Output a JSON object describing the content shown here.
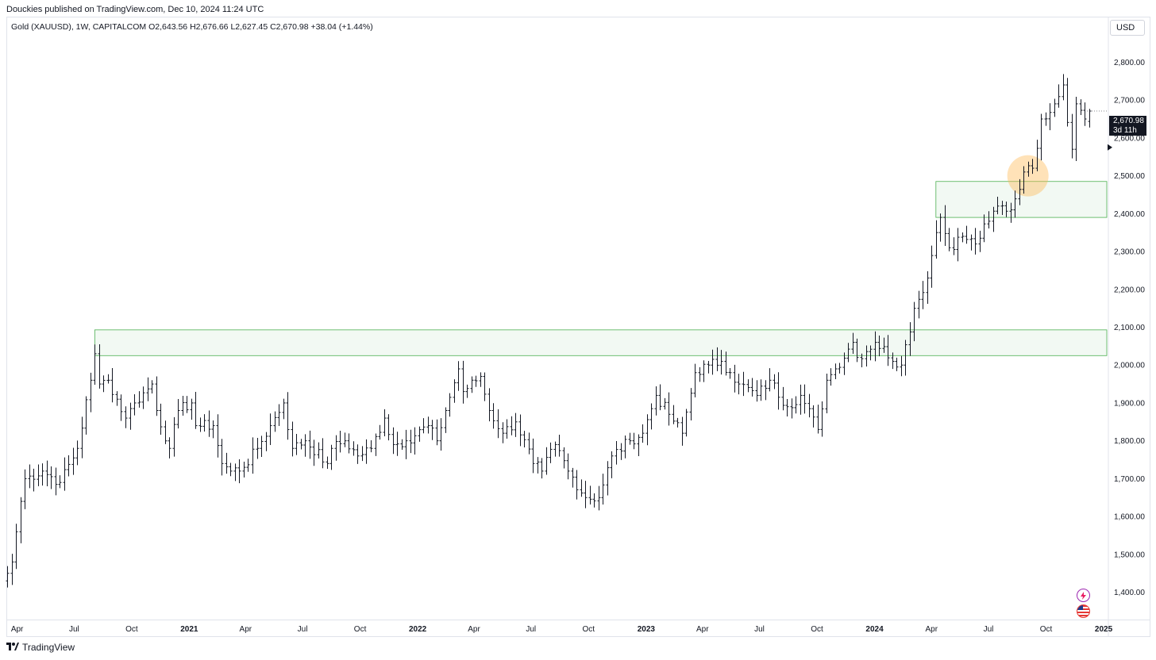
{
  "header": {
    "published": "Douckies published on TradingView.com, Dec 10, 2024 11:24 UTC"
  },
  "legend": {
    "symbol": "Gold (XAUUSD), 1W, CAPITALCOM",
    "open": "O2,643.56",
    "high": "H2,676.66",
    "low": "L2,627.45",
    "close": "C2,670.98",
    "change": "+38.04 (+1.44%)"
  },
  "currency_button": "USD",
  "last_price": {
    "price": "2,670.98",
    "countdown": "3d 11h"
  },
  "footer": {
    "brand": "TradingView"
  },
  "chart_data": {
    "type": "ohlc",
    "symbol": "XAUUSD",
    "interval": "1W",
    "ylim": [
      1330,
      2870
    ],
    "y_ticks": [
      1400,
      1500,
      1600,
      1700,
      1800,
      1900,
      2000,
      2100,
      2200,
      2300,
      2400,
      2500,
      2600,
      2700,
      2800
    ],
    "y_tick_labels": [
      "1,400.00",
      "1,500.00",
      "1,600.00",
      "1,700.00",
      "1,800.00",
      "1,900.00",
      "2,000.00",
      "2,100.00",
      "2,200.00",
      "2,300.00",
      "2,400.00",
      "2,500.00",
      "2,600.00",
      "2,700.00",
      "2,800.00"
    ],
    "x_start": "2020-03-16",
    "x_end": "2025-01-06",
    "x_ticks": [
      {
        "date": "2020-04-01",
        "label": "Apr",
        "bold": false
      },
      {
        "date": "2020-07-01",
        "label": "Jul",
        "bold": false
      },
      {
        "date": "2020-10-01",
        "label": "Oct",
        "bold": false
      },
      {
        "date": "2021-01-01",
        "label": "2021",
        "bold": true
      },
      {
        "date": "2021-04-01",
        "label": "Apr",
        "bold": false
      },
      {
        "date": "2021-07-01",
        "label": "Jul",
        "bold": false
      },
      {
        "date": "2021-10-01",
        "label": "Oct",
        "bold": false
      },
      {
        "date": "2022-01-01",
        "label": "2022",
        "bold": true
      },
      {
        "date": "2022-04-01",
        "label": "Apr",
        "bold": false
      },
      {
        "date": "2022-07-01",
        "label": "Jul",
        "bold": false
      },
      {
        "date": "2022-10-01",
        "label": "Oct",
        "bold": false
      },
      {
        "date": "2023-01-01",
        "label": "2023",
        "bold": true
      },
      {
        "date": "2023-04-01",
        "label": "Apr",
        "bold": false
      },
      {
        "date": "2023-07-01",
        "label": "Jul",
        "bold": false
      },
      {
        "date": "2023-10-01",
        "label": "Oct",
        "bold": false
      },
      {
        "date": "2024-01-01",
        "label": "2024",
        "bold": true
      },
      {
        "date": "2024-04-01",
        "label": "Apr",
        "bold": false
      },
      {
        "date": "2024-07-01",
        "label": "Jul",
        "bold": false
      },
      {
        "date": "2024-10-01",
        "label": "Oct",
        "bold": false
      },
      {
        "date": "2025-01-01",
        "label": "2025",
        "bold": true
      }
    ],
    "anchors": [
      [
        "2020-03-16",
        1450
      ],
      [
        "2020-03-23",
        1480
      ],
      [
        "2020-04-06",
        1640
      ],
      [
        "2020-04-13",
        1700
      ],
      [
        "2020-05-11",
        1720
      ],
      [
        "2020-06-08",
        1690
      ],
      [
        "2020-07-06",
        1780
      ],
      [
        "2020-07-27",
        1960
      ],
      [
        "2020-08-03",
        2030
      ],
      [
        "2020-08-10",
        1950
      ],
      [
        "2020-08-24",
        1960
      ],
      [
        "2020-09-21",
        1860
      ],
      [
        "2020-10-05",
        1900
      ],
      [
        "2020-11-02",
        1950
      ],
      [
        "2020-11-09",
        1880
      ],
      [
        "2020-11-30",
        1780
      ],
      [
        "2020-12-14",
        1880
      ],
      [
        "2021-01-04",
        1900
      ],
      [
        "2021-01-11",
        1840
      ],
      [
        "2021-02-08",
        1840
      ],
      [
        "2021-02-22",
        1740
      ],
      [
        "2021-03-08",
        1720
      ],
      [
        "2021-03-29",
        1730
      ],
      [
        "2021-04-19",
        1780
      ],
      [
        "2021-05-10",
        1840
      ],
      [
        "2021-05-31",
        1900
      ],
      [
        "2021-06-14",
        1780
      ],
      [
        "2021-07-05",
        1800
      ],
      [
        "2021-08-09",
        1740
      ],
      [
        "2021-08-16",
        1780
      ],
      [
        "2021-09-06",
        1800
      ],
      [
        "2021-09-27",
        1760
      ],
      [
        "2021-10-18",
        1780
      ],
      [
        "2021-11-08",
        1860
      ],
      [
        "2021-11-22",
        1790
      ],
      [
        "2021-12-13",
        1800
      ],
      [
        "2022-01-17",
        1840
      ],
      [
        "2022-01-31",
        1800
      ],
      [
        "2022-02-14",
        1880
      ],
      [
        "2022-03-07",
        1990
      ],
      [
        "2022-03-14",
        1930
      ],
      [
        "2022-04-11",
        1970
      ],
      [
        "2022-04-25",
        1880
      ],
      [
        "2022-05-16",
        1820
      ],
      [
        "2022-06-06",
        1850
      ],
      [
        "2022-07-04",
        1740
      ],
      [
        "2022-07-18",
        1720
      ],
      [
        "2022-08-08",
        1790
      ],
      [
        "2022-08-29",
        1720
      ],
      [
        "2022-09-26",
        1650
      ],
      [
        "2022-10-17",
        1650
      ],
      [
        "2022-11-07",
        1760
      ],
      [
        "2022-12-05",
        1800
      ],
      [
        "2022-12-26",
        1820
      ],
      [
        "2023-01-16",
        1920
      ],
      [
        "2023-02-06",
        1870
      ],
      [
        "2023-02-27",
        1820
      ],
      [
        "2023-03-20",
        1980
      ],
      [
        "2023-04-10",
        2000
      ],
      [
        "2023-05-01",
        2010
      ],
      [
        "2023-05-15",
        1980
      ],
      [
        "2023-05-29",
        1950
      ],
      [
        "2023-06-26",
        1920
      ],
      [
        "2023-07-17",
        1960
      ],
      [
        "2023-08-14",
        1890
      ],
      [
        "2023-09-04",
        1920
      ],
      [
        "2023-10-02",
        1830
      ],
      [
        "2023-10-16",
        1960
      ],
      [
        "2023-10-30",
        1990
      ],
      [
        "2023-11-27",
        2060
      ],
      [
        "2023-12-04",
        2020
      ],
      [
        "2024-01-01",
        2060
      ],
      [
        "2024-02-12",
        2000
      ],
      [
        "2024-03-04",
        2150
      ],
      [
        "2024-03-25",
        2230
      ],
      [
        "2024-04-08",
        2350
      ],
      [
        "2024-04-15",
        2390
      ],
      [
        "2024-04-29",
        2310
      ],
      [
        "2024-05-20",
        2340
      ],
      [
        "2024-06-10",
        2320
      ],
      [
        "2024-07-01",
        2380
      ],
      [
        "2024-07-15",
        2420
      ],
      [
        "2024-08-05",
        2410
      ],
      [
        "2024-08-26",
        2510
      ],
      [
        "2024-09-09",
        2520
      ],
      [
        "2024-09-23",
        2650
      ],
      [
        "2024-10-14",
        2690
      ],
      [
        "2024-10-28",
        2740
      ],
      [
        "2024-11-11",
        2570
      ],
      [
        "2024-11-18",
        2690
      ],
      [
        "2024-12-02",
        2650
      ],
      [
        "2024-12-09",
        2671
      ]
    ],
    "last_bar": {
      "date": "2024-12-09",
      "open": 2643.56,
      "high": 2676.66,
      "low": 2627.45,
      "close": 2670.98
    },
    "zones": [
      {
        "from_date": "2020-08-03",
        "low": 2025,
        "high": 2093,
        "color": "#4caf50"
      },
      {
        "from_date": "2024-04-08",
        "low": 2390,
        "high": 2485,
        "color": "#4caf50"
      }
    ],
    "highlight": {
      "date": "2024-09-02",
      "price": 2500,
      "color": "#ffb74d"
    },
    "arrow_marker_price": 2575
  }
}
